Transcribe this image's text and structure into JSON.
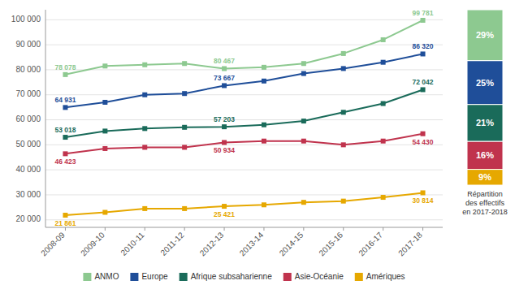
{
  "chart_data": [
    {
      "type": "line",
      "categories": [
        "2008-09",
        "2009-10",
        "2010-11",
        "2011-12",
        "2012-13",
        "2013-14",
        "2014-15",
        "2015-16",
        "2016-17",
        "2017-18"
      ],
      "series": [
        {
          "name": "ANMO",
          "color": "#8dc990",
          "values": [
            78078,
            81500,
            82000,
            82500,
            80467,
            81000,
            82500,
            86500,
            92000,
            99781
          ],
          "value_labels": [
            "78 078",
            null,
            null,
            null,
            "80 467",
            null,
            null,
            null,
            null,
            "99 781"
          ]
        },
        {
          "name": "Europe",
          "color": "#1f4e99",
          "values": [
            64931,
            67000,
            70000,
            70500,
            73667,
            75500,
            78500,
            80500,
            83000,
            86320
          ],
          "value_labels": [
            "64 931",
            null,
            null,
            null,
            "73 667",
            null,
            null,
            null,
            null,
            "86 320"
          ]
        },
        {
          "name": "Afrique subsaharienne",
          "color": "#1a6b5a",
          "values": [
            53018,
            55500,
            56500,
            57000,
            57203,
            58000,
            59500,
            63000,
            66500,
            72042
          ],
          "value_labels": [
            "53 018",
            null,
            null,
            null,
            "57 203",
            null,
            null,
            null,
            null,
            "72 042"
          ]
        },
        {
          "name": "Asie-Océanie",
          "color": "#c0334d",
          "values": [
            46423,
            48500,
            49000,
            49000,
            50934,
            51500,
            51500,
            50000,
            51500,
            54430
          ],
          "value_labels": [
            "46 423",
            null,
            null,
            null,
            "50 934",
            null,
            null,
            null,
            null,
            "54 430"
          ]
        },
        {
          "name": "Amériques",
          "color": "#e6a800",
          "values": [
            21861,
            23000,
            24500,
            24500,
            25421,
            26000,
            27000,
            27500,
            29000,
            30814
          ],
          "value_labels": [
            "21 861",
            null,
            null,
            null,
            "25 421",
            null,
            null,
            null,
            null,
            "30 814"
          ]
        }
      ],
      "ylim": [
        17000,
        104000
      ],
      "yticks": [
        {
          "value": 20000,
          "label": "20 000"
        },
        {
          "value": 30000,
          "label": "30 000"
        },
        {
          "value": 40000,
          "label": "40 000"
        },
        {
          "value": 50000,
          "label": "50 000"
        },
        {
          "value": 60000,
          "label": "60 000"
        },
        {
          "value": 70000,
          "label": "70 000"
        },
        {
          "value": 80000,
          "label": "80 000"
        },
        {
          "value": 90000,
          "label": "90 000"
        },
        {
          "value": 100000,
          "label": "100 000"
        }
      ],
      "grid": true,
      "marker": "square",
      "data_labels": true,
      "legend": "bottom"
    },
    {
      "type": "bar",
      "title": "Répartition\ndes effectifs\nen 2017-2018",
      "stacked": true,
      "series": [
        {
          "color": "#e6a800",
          "values": [
            9
          ],
          "value_labels": [
            "9%"
          ]
        },
        {
          "color": "#c0334d",
          "values": [
            16
          ],
          "value_labels": [
            "16%"
          ]
        },
        {
          "color": "#1a6b5a",
          "values": [
            21
          ],
          "value_labels": [
            "21%"
          ]
        },
        {
          "color": "#1f4e99",
          "values": [
            25
          ],
          "value_labels": [
            "25%"
          ]
        },
        {
          "color": "#8dc990",
          "values": [
            29
          ],
          "value_labels": [
            "29%"
          ]
        }
      ],
      "ylim": [
        0,
        100
      ],
      "data_labels": true,
      "tick_labels": false
    }
  ]
}
